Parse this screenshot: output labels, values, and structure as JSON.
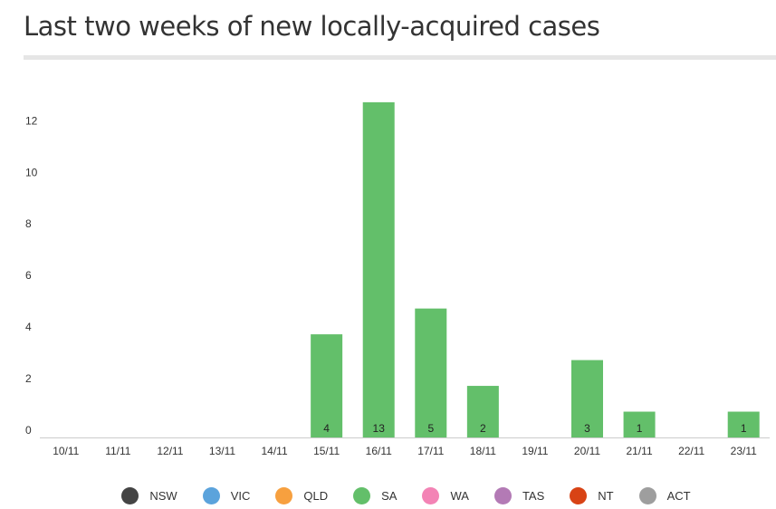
{
  "chart_data": {
    "type": "bar",
    "title": "Last two weeks of new locally-acquired cases",
    "categories": [
      "10/11",
      "11/11",
      "12/11",
      "13/11",
      "14/11",
      "15/11",
      "16/11",
      "17/11",
      "18/11",
      "19/11",
      "20/11",
      "21/11",
      "22/11",
      "23/11"
    ],
    "series": [
      {
        "name": "NSW",
        "color": "#444444",
        "values": [
          0,
          0,
          0,
          0,
          0,
          0,
          0,
          0,
          0,
          0,
          0,
          0,
          0,
          0
        ]
      },
      {
        "name": "VIC",
        "color": "#5ba3dc",
        "values": [
          0,
          0,
          0,
          0,
          0,
          0,
          0,
          0,
          0,
          0,
          0,
          0,
          0,
          0
        ]
      },
      {
        "name": "QLD",
        "color": "#f7a03f",
        "values": [
          0,
          0,
          0,
          0,
          0,
          0,
          0,
          0,
          0,
          0,
          0,
          0,
          0,
          0
        ]
      },
      {
        "name": "SA",
        "color": "#63bf6a",
        "values": [
          0,
          0,
          0,
          0,
          0,
          4,
          13,
          5,
          2,
          0,
          3,
          1,
          0,
          1
        ]
      },
      {
        "name": "WA",
        "color": "#f383b5",
        "values": [
          0,
          0,
          0,
          0,
          0,
          0,
          0,
          0,
          0,
          0,
          0,
          0,
          0,
          0
        ]
      },
      {
        "name": "TAS",
        "color": "#b37ab5",
        "values": [
          0,
          0,
          0,
          0,
          0,
          0,
          0,
          0,
          0,
          0,
          0,
          0,
          0,
          0
        ]
      },
      {
        "name": "NT",
        "color": "#d84315",
        "values": [
          0,
          0,
          0,
          0,
          0,
          0,
          0,
          0,
          0,
          0,
          0,
          0,
          0,
          0
        ]
      },
      {
        "name": "ACT",
        "color": "#9e9e9e",
        "values": [
          0,
          0,
          0,
          0,
          0,
          0,
          0,
          0,
          0,
          0,
          0,
          0,
          0,
          0
        ]
      }
    ],
    "yticks": [
      "0",
      "2",
      "4",
      "6",
      "8",
      "10",
      "12"
    ],
    "ylim": [
      0,
      13
    ],
    "stacked": true,
    "grid": false,
    "legend": "bottom"
  }
}
